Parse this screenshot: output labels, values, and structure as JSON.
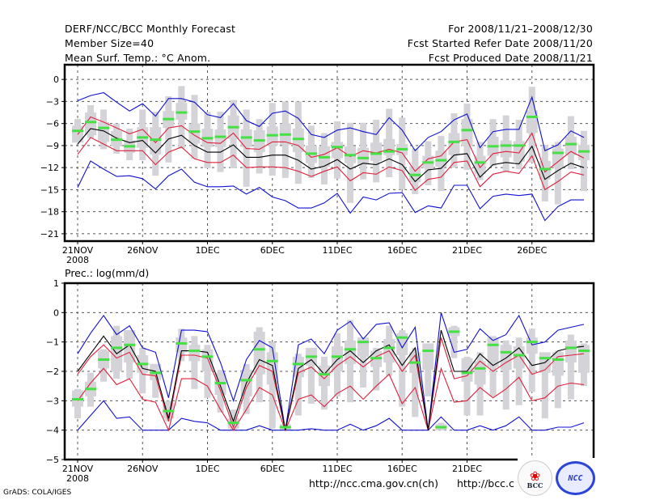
{
  "header": {
    "left": [
      "DERF/NCC/BCC Monthly Forecast",
      "Member Size=40",
      "Mean Surf. Temp.: °C Anom."
    ],
    "right": [
      "For 2008/11/21–2008/12/30",
      "Fcst Started Refer Date 2008/11/20",
      "Fcst Produced Date 2008/11/21"
    ]
  },
  "footer": {
    "credit": "GrADS: COLA/IGES",
    "url1": "http://ncc.cma.gov.cn(ch)",
    "url2": "http://bcc.c",
    "logo1": "BCC",
    "logo2": "NCC"
  },
  "colors": {
    "spread_box": "#d3d3d8",
    "median": "#44e044",
    "mean": "#000000",
    "inner_band": "#e0203c",
    "outer_band": "#1010d0",
    "grid": "#555555"
  },
  "chart_data": [
    {
      "type": "line",
      "title": "Mean Surf. Temp.: °C Anom.",
      "xlabel": "",
      "ylabel": "°C Anom.",
      "ylim": [
        -22,
        2
      ],
      "yticks": [
        0,
        -3,
        -6,
        -9,
        -12,
        -15,
        -18,
        -21
      ],
      "xtick_days": [
        0,
        5,
        10,
        15,
        20,
        25,
        30,
        35
      ],
      "xtick_labels": [
        "21NOV",
        "26NOV",
        "1DEC",
        "6DEC",
        "11DEC",
        "16DEC",
        "21DEC",
        "26DEC"
      ],
      "xtick_sublabel": "2008",
      "grid": true,
      "series": [
        {
          "name": "mean",
          "values": [
            -8.8,
            -6.7,
            -7.0,
            -8.0,
            -8.6,
            -8.3,
            -10.0,
            -8.1,
            -7.6,
            -9.0,
            -9.9,
            -9.9,
            -8.9,
            -10.6,
            -10.6,
            -10.3,
            -10.3,
            -11.0,
            -12.2,
            -11.8,
            -10.9,
            -12.2,
            -11.4,
            -11.6,
            -10.8,
            -11.6,
            -13.9,
            -12.3,
            -12.1,
            -10.3,
            -10.1,
            -13.3,
            -11.6,
            -11.3,
            -11.5,
            -9.1,
            -13.6,
            -12.4,
            -11.4,
            -12.0
          ]
        },
        {
          "name": "inner_upper",
          "values": [
            -7.5,
            -5.1,
            -5.8,
            -6.6,
            -7.4,
            -6.8,
            -8.6,
            -6.6,
            -6.3,
            -7.6,
            -8.6,
            -8.7,
            -7.3,
            -9.4,
            -9.5,
            -8.5,
            -8.5,
            -9.0,
            -10.6,
            -10.2,
            -9.3,
            -10.5,
            -9.7,
            -10.0,
            -9.5,
            -10.0,
            -12.5,
            -10.8,
            -10.4,
            -8.5,
            -8.2,
            -12.0,
            -10.1,
            -9.8,
            -10.0,
            -7.3,
            -12.6,
            -11.2,
            -9.8,
            -10.7
          ]
        },
        {
          "name": "inner_lower",
          "values": [
            -10.2,
            -7.9,
            -8.8,
            -9.7,
            -9.7,
            -9.7,
            -11.6,
            -9.9,
            -9.2,
            -10.8,
            -11.3,
            -11.3,
            -10.3,
            -12.0,
            -11.9,
            -11.9,
            -12.0,
            -12.5,
            -13.2,
            -12.5,
            -11.9,
            -13.8,
            -12.7,
            -12.9,
            -11.9,
            -12.4,
            -15.1,
            -13.6,
            -13.3,
            -11.3,
            -11.1,
            -14.6,
            -12.9,
            -12.5,
            -12.8,
            -10.4,
            -15.0,
            -13.9,
            -12.6,
            -13.0
          ]
        },
        {
          "name": "outer_upper",
          "values": [
            -2.9,
            -2.2,
            -1.8,
            -3.1,
            -4.3,
            -3.3,
            -5.0,
            -2.6,
            -2.6,
            -3.1,
            -4.8,
            -5.2,
            -3.3,
            -5.6,
            -6.4,
            -4.6,
            -4.3,
            -5.3,
            -7.5,
            -7.9,
            -6.9,
            -6.6,
            -7.1,
            -7.5,
            -5.2,
            -6.9,
            -9.7,
            -7.9,
            -7.1,
            -5.5,
            -4.7,
            -9.3,
            -7.1,
            -6.8,
            -6.8,
            -2.4,
            -9.7,
            -8.9,
            -7.0,
            -7.9
          ]
        },
        {
          "name": "outer_lower",
          "values": [
            -14.7,
            -11.1,
            -12.2,
            -13.2,
            -13.1,
            -13.5,
            -14.9,
            -13.1,
            -12.2,
            -14.0,
            -14.6,
            -14.6,
            -14.5,
            -15.6,
            -14.7,
            -16.0,
            -16.5,
            -17.5,
            -17.5,
            -16.8,
            -15.5,
            -18.2,
            -16.0,
            -16.4,
            -15.5,
            -15.4,
            -18.1,
            -17.2,
            -17.5,
            -14.4,
            -14.4,
            -17.6,
            -15.9,
            -15.6,
            -15.8,
            -15.6,
            -19.2,
            -17.3,
            -16.4,
            -16.4
          ]
        },
        {
          "name": "median",
          "values": [
            -7.0,
            -5.8,
            -6.6,
            -8.2,
            -9.1,
            -7.9,
            -8.2,
            -5.4,
            -4.5,
            -7.1,
            -8.0,
            -7.8,
            -6.5,
            -7.9,
            -8.3,
            -7.6,
            -7.5,
            -8.1,
            -10.1,
            -10.6,
            -9.2,
            -10.3,
            -10.7,
            -10.1,
            -9.8,
            -9.5,
            -13.0,
            -11.3,
            -11.0,
            -8.5,
            -6.9,
            -11.3,
            -9.1,
            -9.0,
            -9.0,
            -5.1,
            -12.2,
            -10.0,
            -8.8,
            -9.8
          ]
        },
        {
          "name": "box_q_upper",
          "values": [
            -6.3,
            -4.5,
            -5.8,
            -7.0,
            -8.3,
            -6.5,
            -6.5,
            -4.3,
            -3.2,
            -6.0,
            -6.7,
            -6.8,
            -4.9,
            -6.8,
            -6.9,
            -6.4,
            -6.0,
            -6.7,
            -9.0,
            -9.1,
            -8.5,
            -9.1,
            -9.3,
            -8.6,
            -8.1,
            -8.8,
            -11.8,
            -10.4,
            -9.7,
            -7.3,
            -5.4,
            -10.4,
            -7.8,
            -8.3,
            -8.4,
            -4.2,
            -11.1,
            -9.4,
            -7.8,
            -8.9
          ]
        },
        {
          "name": "box_q_lower",
          "values": [
            -8.6,
            -7.6,
            -8.5,
            -9.1,
            -10.0,
            -9.3,
            -10.2,
            -6.6,
            -5.5,
            -8.7,
            -9.2,
            -9.2,
            -8.1,
            -9.2,
            -9.9,
            -9.0,
            -8.9,
            -9.9,
            -11.4,
            -11.9,
            -10.7,
            -11.4,
            -11.6,
            -11.1,
            -10.3,
            -10.3,
            -14.0,
            -12.1,
            -11.9,
            -10.3,
            -9.1,
            -12.9,
            -10.4,
            -10.6,
            -11.2,
            -7.3,
            -13.6,
            -12.0,
            -10.3,
            -11.0
          ]
        },
        {
          "name": "box_full_upper",
          "values": [
            -5.4,
            -3.5,
            -4.1,
            -6.0,
            -6.7,
            -4.1,
            -4.4,
            -2.3,
            -0.9,
            -2.1,
            -4.4,
            -4.4,
            -2.8,
            -4.1,
            -5.4,
            -3.2,
            -3.0,
            -3.0,
            -6.3,
            -7.3,
            -5.7,
            -5.9,
            -5.9,
            -5.5,
            -4.0,
            -5.2,
            -9.4,
            -8.4,
            -7.7,
            -4.6,
            -3.3,
            -8.5,
            -5.4,
            -4.9,
            -5.5,
            -1.0,
            -8.9,
            -8.5,
            -5.0,
            -7.0
          ]
        },
        {
          "name": "box_full_upper_end",
          "values": [
            -7.7,
            -8.0,
            -9.5,
            -10.1,
            -11.0,
            -11.0,
            -13.1,
            -11.3,
            -9.4,
            -10.8,
            -12.1,
            -12.6,
            -12.1,
            -14.6,
            -12.8,
            -13.1,
            -13.4,
            -14.2,
            -13.4,
            -14.3,
            -13.5,
            -16.8,
            -13.6,
            -14.0,
            -13.3,
            -15.0,
            -15.6,
            -14.4,
            -15.2,
            -12.0,
            -12.3,
            -13.7,
            -11.8,
            -12.5,
            -12.2,
            -11.3,
            -16.6,
            -17.0,
            -12.2,
            -15.2
          ]
        }
      ]
    },
    {
      "type": "line",
      "title": "Prec.: log(mm/d)",
      "xlabel": "",
      "ylabel": "log(mm/d)",
      "ylim": [
        -5,
        1
      ],
      "yticks": [
        1,
        0,
        -1,
        -2,
        -3,
        -4,
        -5
      ],
      "xtick_days": [
        0,
        5,
        10,
        15,
        20,
        25,
        30,
        35
      ],
      "xtick_labels": [
        "21NOV",
        "26NOV",
        "1DEC",
        "6DEC",
        "11DEC",
        "16DEC",
        "21DEC",
        "26DEC"
      ],
      "xtick_sublabel": "2008",
      "grid": true,
      "series": [
        {
          "name": "mean",
          "values": [
            -2.0,
            -1.4,
            -0.8,
            -1.4,
            -1.1,
            -1.9,
            -2.0,
            -3.6,
            -1.3,
            -1.3,
            -1.35,
            -2.5,
            -3.7,
            -2.4,
            -1.6,
            -1.8,
            -4.0,
            -1.9,
            -1.6,
            -2.1,
            -1.6,
            -1.3,
            -1.7,
            -1.3,
            -1.1,
            -1.8,
            -1.2,
            -4.0,
            -0.6,
            -2.0,
            -2.0,
            -1.4,
            -1.8,
            -1.55,
            -1.2,
            -1.8,
            -1.7,
            -1.3,
            -1.2,
            -1.15
          ]
        },
        {
          "name": "inner_upper",
          "values": [
            -2.1,
            -1.5,
            -1.1,
            -1.55,
            -1.35,
            -2.1,
            -2.15,
            -3.7,
            -1.45,
            -1.45,
            -1.55,
            -2.65,
            -3.9,
            -2.55,
            -1.8,
            -2.0,
            -4.0,
            -2.05,
            -1.85,
            -2.25,
            -1.8,
            -1.5,
            -1.85,
            -1.5,
            -1.3,
            -2.0,
            -1.45,
            -4.0,
            -0.85,
            -2.25,
            -2.15,
            -1.65,
            -2.0,
            -1.7,
            -1.45,
            -2.1,
            -1.95,
            -1.5,
            -1.45,
            -1.4
          ]
        },
        {
          "name": "inner_lower",
          "values": [
            -3.0,
            -2.4,
            -1.9,
            -2.45,
            -2.25,
            -2.95,
            -3.05,
            -4.0,
            -2.25,
            -2.25,
            -2.5,
            -3.3,
            -4.0,
            -3.3,
            -2.55,
            -2.8,
            -4.0,
            -2.95,
            -2.8,
            -3.2,
            -2.75,
            -2.5,
            -2.95,
            -2.5,
            -2.1,
            -3.1,
            -2.55,
            -4.0,
            -1.9,
            -3.05,
            -3.0,
            -2.55,
            -2.9,
            -2.6,
            -2.2,
            -3.0,
            -2.9,
            -2.5,
            -2.4,
            -2.45
          ]
        },
        {
          "name": "outer_upper",
          "values": [
            -1.4,
            -0.7,
            -0.1,
            -0.75,
            -0.45,
            -1.2,
            -1.35,
            -2.9,
            -0.6,
            -0.6,
            -0.65,
            -1.7,
            -3.0,
            -1.6,
            -0.95,
            -1.2,
            -4.0,
            -1.1,
            -0.9,
            -1.4,
            -0.6,
            -0.3,
            -0.9,
            -0.4,
            -0.35,
            -1.2,
            -0.5,
            -4.0,
            0.0,
            -1.35,
            -1.25,
            -0.55,
            -0.95,
            -0.75,
            -0.1,
            -1.1,
            -1.0,
            -0.6,
            -0.5,
            -0.4
          ]
        },
        {
          "name": "outer_lower",
          "values": [
            -4.0,
            -3.5,
            -3.0,
            -3.6,
            -3.55,
            -4.0,
            -4.0,
            -4.0,
            -3.6,
            -3.7,
            -3.75,
            -4.0,
            -4.0,
            -4.0,
            -3.85,
            -4.0,
            -4.0,
            -4.0,
            -3.95,
            -4.0,
            -4.0,
            -3.8,
            -4.0,
            -3.85,
            -3.6,
            -4.0,
            -4.0,
            -4.0,
            -3.55,
            -4.0,
            -4.0,
            -3.85,
            -4.0,
            -3.85,
            -3.55,
            -4.0,
            -4.0,
            -3.9,
            -3.9,
            -3.75
          ]
        },
        {
          "name": "median",
          "values": [
            -2.95,
            -2.6,
            -1.6,
            -1.2,
            -1.1,
            -1.75,
            -2.05,
            -3.35,
            -1.05,
            -1.3,
            -1.5,
            -2.4,
            -3.75,
            -2.3,
            -1.25,
            -1.65,
            -3.9,
            -1.75,
            -1.5,
            -2.1,
            -1.5,
            -1.25,
            -1.0,
            -1.55,
            -1.2,
            -0.85,
            -1.7,
            -1.3,
            -3.9,
            -0.65,
            -2.05,
            -1.9,
            -1.1,
            -1.35,
            -1.45,
            -1.0,
            -1.55,
            -1.6,
            -1.2,
            -1.3
          ]
        },
        {
          "name": "box_q_upper",
          "values": [
            -2.65,
            -2.35,
            -1.3,
            -0.8,
            -0.6,
            -1.45,
            -1.75,
            -3.05,
            -0.85,
            -1.1,
            -1.25,
            -2.05,
            -3.6,
            -1.95,
            -0.65,
            -1.35,
            -3.8,
            -1.5,
            -1.2,
            -1.8,
            -1.15,
            -0.95,
            -0.85,
            -1.3,
            -0.9,
            -0.7,
            -1.35,
            -1.05,
            -3.8,
            -0.5,
            -1.55,
            -1.65,
            -0.85,
            -1.1,
            -1.15,
            -0.85,
            -1.35,
            -1.35,
            -0.95,
            -1.1
          ]
        },
        {
          "name": "box_q_lower",
          "values": [
            -3.2,
            -2.85,
            -1.9,
            -2.0,
            -1.7,
            -2.05,
            -2.3,
            -3.6,
            -1.35,
            -1.65,
            -2.0,
            -2.8,
            -3.95,
            -2.85,
            -2.1,
            -2.45,
            -4.0,
            -2.2,
            -1.8,
            -2.5,
            -2.0,
            -1.75,
            -1.5,
            -1.85,
            -1.7,
            -1.45,
            -2.05,
            -1.95,
            -4.0,
            -0.8,
            -2.35,
            -2.45,
            -1.85,
            -1.95,
            -1.9,
            -1.4,
            -2.05,
            -2.15,
            -1.7,
            -2.05
          ]
        },
        {
          "name": "box_full_upper",
          "values": [
            -2.6,
            -2.05,
            -1.25,
            -0.45,
            -0.6,
            -1.2,
            -1.75,
            -3.0,
            -0.55,
            -0.8,
            -1.1,
            -1.95,
            -3.3,
            -1.75,
            -0.5,
            -1.0,
            -3.8,
            -1.4,
            -1.35,
            -1.5,
            -0.7,
            -0.25,
            -0.85,
            -1.2,
            -0.45,
            -0.6,
            -1.2,
            -1.05,
            -3.75,
            -0.45,
            -1.5,
            -1.35,
            -0.8,
            -0.95,
            -0.85,
            -0.55,
            -1.45,
            -1.3,
            -0.75,
            -1.05
          ]
        },
        {
          "name": "box_full_lower",
          "values": [
            -3.6,
            -3.2,
            -2.35,
            -2.25,
            -2.25,
            -2.75,
            -2.9,
            -3.7,
            -1.65,
            -2.6,
            -2.9,
            -3.4,
            -4.0,
            -3.45,
            -3.05,
            -3.95,
            -4.0,
            -3.5,
            -3.1,
            -3.3,
            -2.85,
            -3.05,
            -2.55,
            -2.65,
            -2.15,
            -3.2,
            -3.55,
            -2.85,
            -4.0,
            -1.55,
            -3.5,
            -3.5,
            -2.85,
            -3.3,
            -3.15,
            -2.7,
            -3.6,
            -3.25,
            -2.95,
            -2.5
          ]
        }
      ]
    }
  ]
}
